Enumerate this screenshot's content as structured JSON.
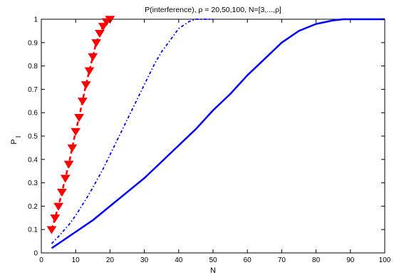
{
  "chart_data": {
    "type": "line",
    "title": "P(interference), ρ = 20,50,100,    N=[3,...,ρ]",
    "xlabel": "N",
    "ylabel_main": "P",
    "ylabel_sub": "I",
    "xlim": [
      0,
      100
    ],
    "ylim": [
      0,
      1
    ],
    "xticks": [
      0,
      10,
      20,
      30,
      40,
      50,
      60,
      70,
      80,
      90,
      100
    ],
    "yticks": [
      0,
      0.1,
      0.2,
      0.3,
      0.4,
      0.5,
      0.6,
      0.7,
      0.8,
      0.9,
      1
    ],
    "ytick_labels": [
      "0",
      "0.1",
      "0.2",
      "0.3",
      "0.4",
      "0.5",
      "0.6",
      "0.7",
      "0.8",
      "0.9",
      "1"
    ],
    "grid": false,
    "series": [
      {
        "color": "#ff0000",
        "style": "dashed-with-triangle-markers",
        "x": [
          3,
          4,
          5,
          6,
          7,
          8,
          9,
          10,
          11,
          12,
          13,
          14,
          15,
          16,
          17,
          18,
          19,
          20
        ],
        "y": [
          0.1,
          0.15,
          0.2,
          0.26,
          0.32,
          0.38,
          0.45,
          0.52,
          0.58,
          0.65,
          0.72,
          0.78,
          0.84,
          0.9,
          0.94,
          0.97,
          0.99,
          1.0
        ]
      },
      {
        "color": "#0000ff",
        "style": "dash-dot",
        "x": [
          3,
          5,
          8,
          10,
          13,
          15,
          18,
          20,
          23,
          25,
          28,
          30,
          33,
          35,
          38,
          40,
          43,
          45,
          48,
          50
        ],
        "y": [
          0.04,
          0.07,
          0.12,
          0.16,
          0.23,
          0.28,
          0.36,
          0.42,
          0.51,
          0.57,
          0.66,
          0.72,
          0.81,
          0.86,
          0.92,
          0.96,
          0.99,
          1.0,
          1.0,
          1.0
        ]
      },
      {
        "color": "#0000ff",
        "style": "solid",
        "x": [
          3,
          5,
          10,
          15,
          20,
          25,
          30,
          35,
          40,
          45,
          50,
          55,
          60,
          65,
          70,
          75,
          80,
          85,
          88,
          90,
          95,
          100
        ],
        "y": [
          0.02,
          0.04,
          0.09,
          0.14,
          0.2,
          0.26,
          0.32,
          0.39,
          0.46,
          0.53,
          0.61,
          0.68,
          0.76,
          0.83,
          0.9,
          0.95,
          0.98,
          0.995,
          1.0,
          1.0,
          1.0,
          1.0
        ]
      }
    ]
  }
}
